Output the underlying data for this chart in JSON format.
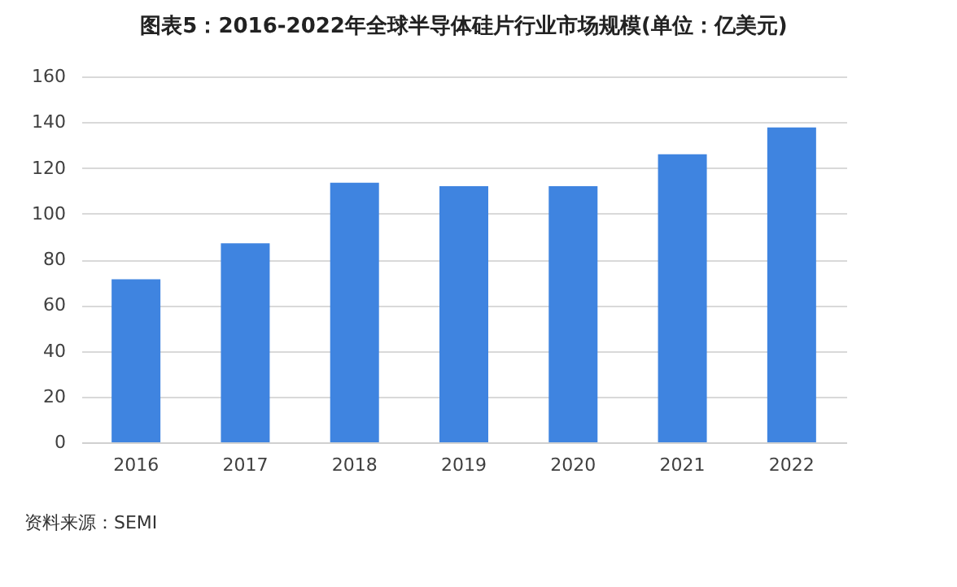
{
  "chart_data": {
    "type": "bar",
    "title": "图表5：2016-2022年全球半导体硅片行业市场规模(单位：亿美元)",
    "categories": [
      "2016",
      "2017",
      "2018",
      "2019",
      "2020",
      "2021",
      "2022"
    ],
    "values": [
      71.3,
      87,
      113.5,
      112,
      112,
      126,
      137.7
    ],
    "color": "#3f84e0",
    "ylim": [
      0,
      160
    ],
    "yticks": [
      0,
      20,
      40,
      60,
      80,
      100,
      120,
      140,
      160
    ],
    "grid": "y",
    "annotations": [
      "资料来源：SEMI"
    ]
  }
}
